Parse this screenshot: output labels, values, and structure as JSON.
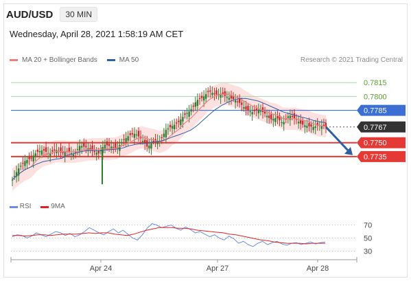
{
  "header": {
    "pair": "AUD/USD",
    "timeframe": "30 MIN"
  },
  "timestamp": "Wednesday, April 28, 2021 1:58:19 AM CET",
  "legend": {
    "ma20_label": "MA 20 + Bollinger Bands",
    "ma50_label": "MA 50",
    "rsi_label": "RSI",
    "ma9_label": "9MA"
  },
  "credit": "Research © 2021 Trading Central",
  "colors": {
    "ma20": "#f08080",
    "ma50": "#2e5fa8",
    "bollinger_fill": "#fcd9d9",
    "rsi": "#6a8ee6",
    "ma9": "#e02020",
    "candle_up": "#2e7d32",
    "candle_down": "#c62828",
    "resistance_green": "#a5d6a7",
    "level_blue": "#3b6fd4",
    "support_red": "#e53935",
    "current": "#333333",
    "arrow": "#2f5f9e"
  },
  "chart_data": {
    "type": "candlestick",
    "x_tick_labels": [
      "Apr 24",
      "Apr 27",
      "Apr 28"
    ],
    "y_range": [
      0.77,
      0.783
    ],
    "levels": [
      {
        "value": 0.7815,
        "label": "0.7815",
        "kind": "resistance"
      },
      {
        "value": 0.78,
        "label": "0.7800",
        "kind": "resistance"
      },
      {
        "value": 0.7785,
        "label": "0.7785",
        "kind": "pivot"
      },
      {
        "value": 0.7767,
        "label": "0.7767",
        "kind": "current"
      },
      {
        "value": 0.775,
        "label": "0.7750",
        "kind": "support"
      },
      {
        "value": 0.7735,
        "label": "0.7735",
        "kind": "support"
      }
    ],
    "close_path": [
      0.771,
      0.7722,
      0.773,
      0.7733,
      0.774,
      0.7742,
      0.7738,
      0.7743,
      0.7739,
      0.7741,
      0.7737,
      0.7747,
      0.7745,
      0.7742,
      0.7738,
      0.7748,
      0.7746,
      0.7744,
      0.7752,
      0.7758,
      0.776,
      0.7754,
      0.7745,
      0.7752,
      0.7752,
      0.7764,
      0.7768,
      0.7772,
      0.778,
      0.7785,
      0.7796,
      0.7799,
      0.7806,
      0.7802,
      0.7803,
      0.7799,
      0.7797,
      0.7793,
      0.7786,
      0.7783,
      0.7786,
      0.7782,
      0.7775,
      0.7777,
      0.7771,
      0.778,
      0.7776,
      0.777,
      0.7768,
      0.7767,
      0.7769,
      0.7767
    ],
    "scenario_arrow": {
      "from": 0.7767,
      "to": 0.7735
    },
    "rsi": {
      "levels": [
        70,
        50,
        30
      ],
      "y_range": [
        20,
        80
      ],
      "values": [
        52,
        55,
        54,
        50,
        53,
        58,
        55,
        52,
        56,
        60,
        58,
        54,
        57,
        52,
        55,
        60,
        66,
        62,
        58,
        55,
        60,
        64,
        58,
        62,
        56,
        50,
        47,
        55,
        65,
        72,
        70,
        66,
        68,
        70,
        65,
        62,
        67,
        63,
        58,
        60,
        56,
        52,
        55,
        50,
        47,
        53,
        49,
        42,
        45,
        40,
        37,
        42,
        45,
        40,
        43,
        45,
        41,
        39,
        42,
        43,
        40,
        42,
        44,
        41,
        43,
        44
      ],
      "ma9": [
        54,
        54,
        53,
        54,
        55,
        55,
        54,
        55,
        56,
        56,
        56,
        57,
        58,
        57,
        58,
        58,
        56,
        55,
        54,
        56,
        59,
        62,
        64,
        66,
        66,
        66,
        65,
        65,
        64,
        62,
        61,
        60,
        59,
        58,
        56,
        55,
        53,
        51,
        49,
        47,
        46,
        44,
        43,
        42,
        42,
        42,
        41,
        42,
        42,
        42
      ]
    }
  }
}
